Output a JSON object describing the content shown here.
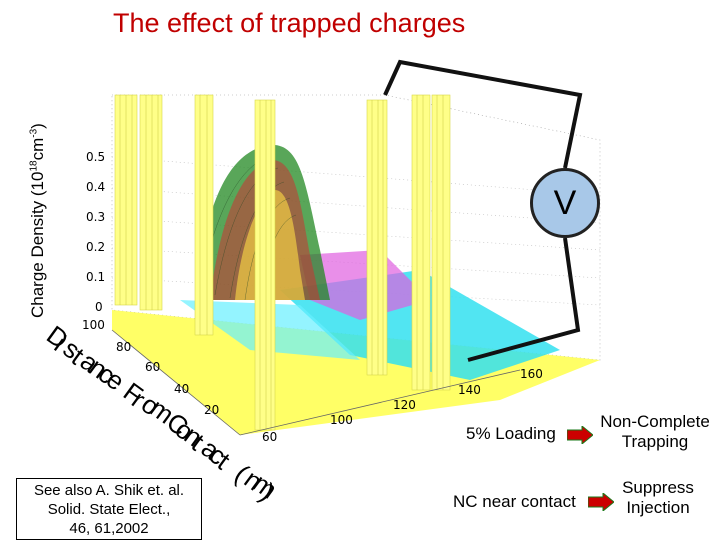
{
  "title": "The effect of trapped charges",
  "y_axis_label": "Charge Density (10",
  "y_axis_exp": "18",
  "y_axis_unit": "cm",
  "y_axis_unit_exp": "-3",
  "y_axis_close": ")",
  "z_ticks": [
    "0.5",
    "0.4",
    "0.3",
    "0.2",
    "0.1",
    "0"
  ],
  "depth_ticks": [
    "100",
    "80",
    "60",
    "40",
    "20"
  ],
  "x_ticks": [
    "60",
    "100",
    "120",
    "140",
    "160"
  ],
  "depth_axis_label": "Distance From Contact (nm)",
  "voltage_symbol": "V",
  "reference": {
    "line1": "See also A. Shik et. al.",
    "line2": "Solid. State Elect.,",
    "line3": "46, 61,2002"
  },
  "legend": [
    {
      "left": "5% Loading",
      "right_line1": "Non-Complete",
      "right_line2": "Trapping"
    },
    {
      "left": "NC near contact",
      "right_line1": "Suppress",
      "right_line2": "Injection"
    }
  ],
  "colors": {
    "title": "#c00000",
    "voltmeter": "#a8c8e8",
    "arrow": "#cc0000"
  }
}
